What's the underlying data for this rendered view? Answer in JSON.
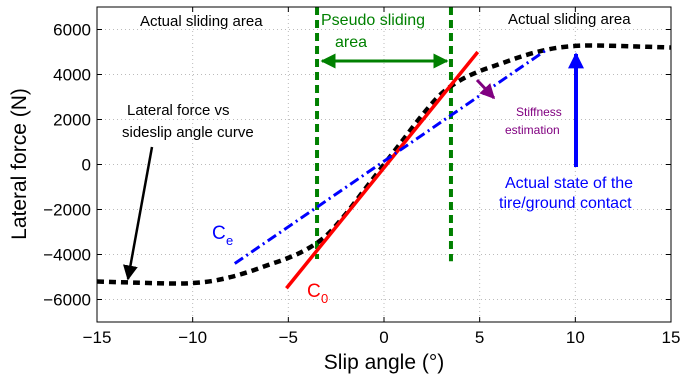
{
  "chart_data": {
    "type": "line",
    "title": "",
    "xlabel": "Slip angle (°)",
    "ylabel": "Lateral force (N)",
    "xlim": [
      -15,
      15
    ],
    "ylim": [
      -7000,
      7000
    ],
    "xticks": [
      -15,
      -10,
      -5,
      0,
      5,
      10,
      15
    ],
    "yticks": [
      -6000,
      -4000,
      -2000,
      0,
      2000,
      4000,
      6000
    ],
    "grid": true,
    "series": [
      {
        "name": "Lateral force vs sideslip angle curve",
        "style": "dashed",
        "color": "#000000",
        "x": [
          -15,
          -13,
          -11,
          -10,
          -9,
          -8,
          -7,
          -6,
          -5,
          -4,
          -3,
          -2,
          -1,
          0,
          1,
          2,
          3,
          4,
          5,
          6,
          7,
          8,
          9,
          10,
          11,
          13,
          15
        ],
        "y": [
          -5200,
          -5250,
          -5290,
          -5270,
          -5180,
          -5000,
          -4750,
          -4450,
          -4150,
          -3750,
          -3150,
          -2200,
          -1100,
          0,
          1100,
          2200,
          3150,
          3750,
          4150,
          4450,
          4750,
          5000,
          5180,
          5270,
          5290,
          5250,
          5200
        ]
      },
      {
        "name": "C0",
        "style": "solid",
        "color": "#ff0000",
        "x": [
          -5.1,
          4.9
        ],
        "y": [
          -5500,
          5000
        ]
      },
      {
        "name": "Ce",
        "style": "dashdot",
        "color": "#0000ff",
        "x": [
          -7.8,
          8.5
        ],
        "y": [
          -4400,
          5100
        ]
      }
    ],
    "vertical_lines": [
      {
        "x": -3.5,
        "y_range": [
          -4200,
          7000
        ],
        "style": "dashed",
        "color": "#008000"
      },
      {
        "x": 3.5,
        "y_range": [
          -4300,
          7000
        ],
        "style": "dashed",
        "color": "#008000"
      }
    ],
    "annotations": [
      {
        "text": "Actual sliding area",
        "color": "#000000"
      },
      {
        "text": "Actual sliding area",
        "color": "#000000"
      },
      {
        "text_lines": [
          "Pseudo sliding",
          "area"
        ],
        "color": "#008000"
      },
      {
        "text_lines": [
          "Lateral force vs",
          "sideslip angle curve"
        ],
        "color": "#000000"
      },
      {
        "text_lines": [
          "Stiffness",
          "estimation"
        ],
        "color": "#800080"
      },
      {
        "text_lines": [
          "Actual state of the",
          "tire/ground contact"
        ],
        "color": "#0000ff"
      },
      {
        "text": "C",
        "subscript": "e",
        "color": "#0000ff"
      },
      {
        "text": "C",
        "subscript": "0",
        "color": "#ff0000"
      }
    ]
  }
}
